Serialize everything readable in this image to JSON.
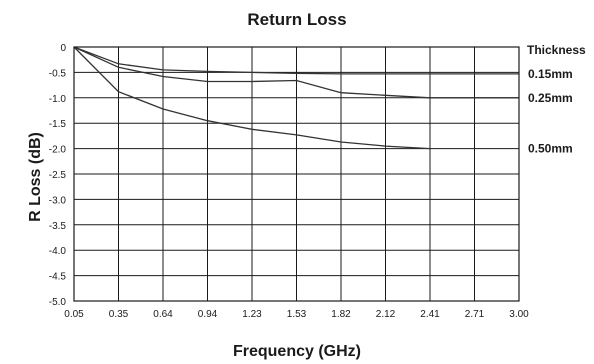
{
  "chart_data": {
    "type": "line",
    "title": "Return Loss",
    "xlabel": "Frequency (GHz)",
    "ylabel": "R Loss (dB)",
    "x_ticks": [
      "0.05",
      "0.35",
      "0.64",
      "0.94",
      "1.23",
      "1.53",
      "1.82",
      "2.12",
      "2.41",
      "2.71",
      "3.00"
    ],
    "y_ticks": [
      "0",
      "-0.5",
      "-1.0",
      "-1.5",
      "-2.0",
      "-2.5",
      "-3.0",
      "-3.5",
      "-4.0",
      "-4.5",
      "-5.0"
    ],
    "xlim": [
      0.05,
      3.0
    ],
    "ylim": [
      -5.0,
      0
    ],
    "grid": true,
    "legend_title": "Thickness",
    "legend_placement": "right",
    "series": [
      {
        "name": "0.15mm",
        "x": [
          0.05,
          0.35,
          0.64,
          0.94,
          1.23,
          1.53,
          1.82,
          2.12,
          2.41,
          2.71,
          3.0
        ],
        "y": [
          0,
          -0.33,
          -0.45,
          -0.48,
          -0.5,
          -0.52,
          -0.53,
          -0.53,
          -0.53,
          -0.53,
          -0.53
        ]
      },
      {
        "name": "0.25mm",
        "x": [
          0.05,
          0.35,
          0.64,
          0.94,
          1.23,
          1.53,
          1.82,
          2.12,
          2.41,
          2.71,
          3.0
        ],
        "y": [
          0,
          -0.4,
          -0.58,
          -0.68,
          -0.68,
          -0.66,
          -0.9,
          -0.95,
          -1.0,
          -1.0,
          -1.0
        ]
      },
      {
        "name": "0.50mm",
        "x": [
          0.05,
          0.35,
          0.64,
          0.94,
          1.23,
          1.53,
          1.82,
          2.12,
          2.41
        ],
        "y": [
          0,
          -0.88,
          -1.22,
          -1.45,
          -1.62,
          -1.73,
          -1.87,
          -1.95,
          -2.0
        ]
      }
    ],
    "colors": {
      "line": "#333333",
      "grid": "#1a1a1a",
      "background": "#ffffff"
    }
  }
}
